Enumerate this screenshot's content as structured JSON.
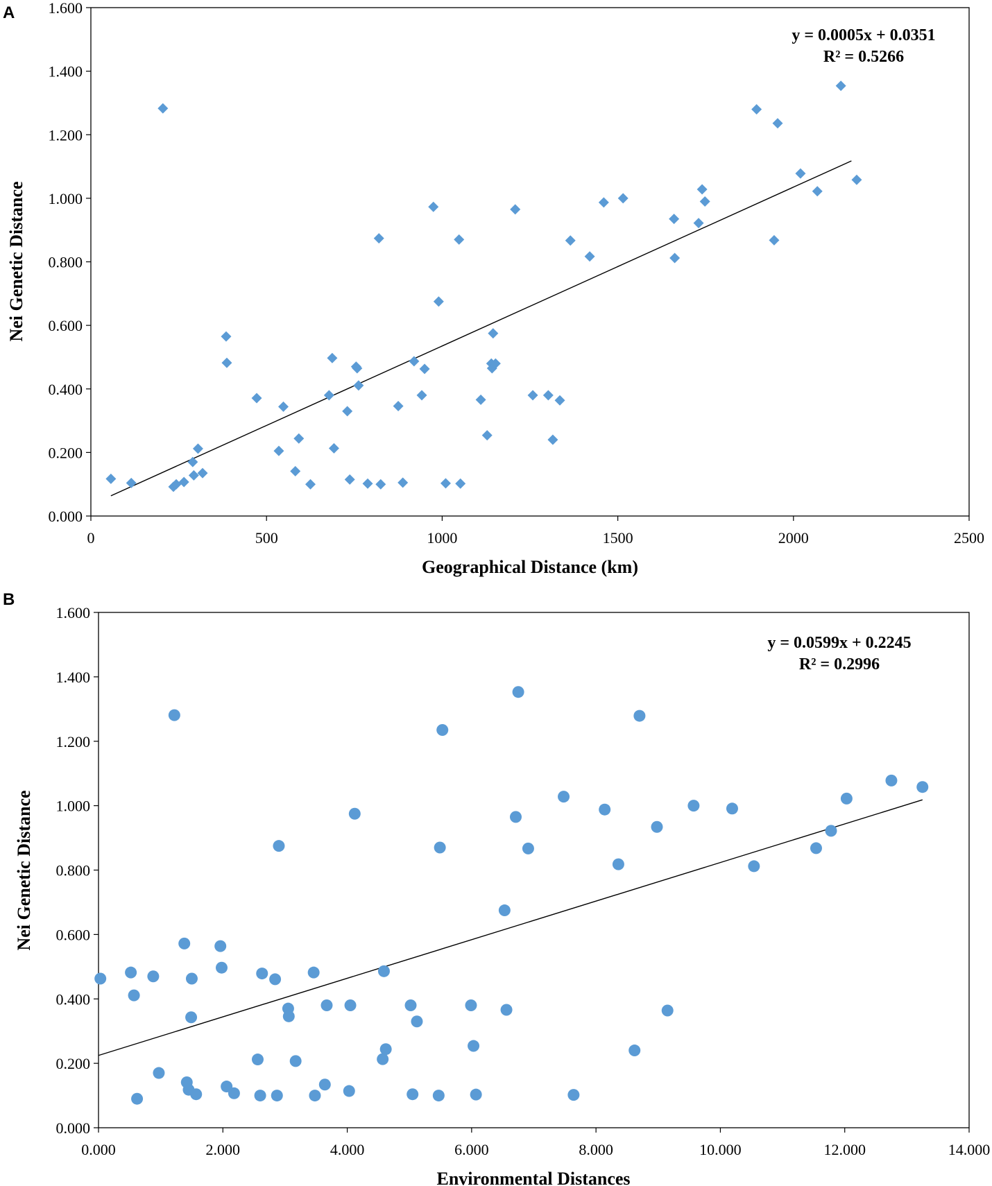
{
  "colors": {
    "marker": "#5B9BD5",
    "axis": "#000000",
    "trend": "#000000"
  },
  "chart_data": [
    {
      "panel": "A",
      "type": "scatter",
      "marker": "diamond",
      "xlabel": "Geographical Distance (km)",
      "ylabel": "Nei Genetic Distance",
      "xlim": [
        0,
        2500
      ],
      "ylim": [
        0,
        1.6
      ],
      "xticks": [
        0,
        500,
        1000,
        1500,
        2000,
        2500
      ],
      "xtick_labels": [
        "0",
        "500",
        "1000",
        "1500",
        "2000",
        "2500"
      ],
      "yticks": [
        0,
        0.2,
        0.4,
        0.6,
        0.8,
        1.0,
        1.2,
        1.4,
        1.6
      ],
      "ytick_labels": [
        "0.000",
        "0.200",
        "0.400",
        "0.600",
        "0.800",
        "1.000",
        "1.200",
        "1.400",
        "1.600"
      ],
      "equation": "y = 0.0005x + 0.0351",
      "r_squared": "R² = 0.5266",
      "trend": {
        "slope": 0.0005,
        "intercept": 0.0351,
        "x_range": [
          57,
          2165
        ]
      },
      "points": [
        [
          57,
          0.117
        ],
        [
          115,
          0.104
        ],
        [
          205,
          1.283
        ],
        [
          235,
          0.092
        ],
        [
          243,
          0.1
        ],
        [
          265,
          0.107
        ],
        [
          290,
          0.17
        ],
        [
          293,
          0.128
        ],
        [
          305,
          0.212
        ],
        [
          318,
          0.135
        ],
        [
          385,
          0.565
        ],
        [
          387,
          0.482
        ],
        [
          472,
          0.371
        ],
        [
          535,
          0.205
        ],
        [
          548,
          0.344
        ],
        [
          582,
          0.141
        ],
        [
          592,
          0.244
        ],
        [
          625,
          0.1
        ],
        [
          678,
          0.38
        ],
        [
          687,
          0.497
        ],
        [
          692,
          0.213
        ],
        [
          730,
          0.33
        ],
        [
          737,
          0.115
        ],
        [
          755,
          0.47
        ],
        [
          758,
          0.465
        ],
        [
          762,
          0.411
        ],
        [
          788,
          0.102
        ],
        [
          820,
          0.874
        ],
        [
          825,
          0.1
        ],
        [
          875,
          0.346
        ],
        [
          888,
          0.105
        ],
        [
          920,
          0.487
        ],
        [
          942,
          0.38
        ],
        [
          950,
          0.463
        ],
        [
          975,
          0.973
        ],
        [
          990,
          0.675
        ],
        [
          1010,
          0.103
        ],
        [
          1048,
          0.87
        ],
        [
          1052,
          0.102
        ],
        [
          1110,
          0.366
        ],
        [
          1128,
          0.254
        ],
        [
          1140,
          0.48
        ],
        [
          1142,
          0.465
        ],
        [
          1145,
          0.575
        ],
        [
          1152,
          0.48
        ],
        [
          1208,
          0.965
        ],
        [
          1258,
          0.38
        ],
        [
          1302,
          0.38
        ],
        [
          1315,
          0.24
        ],
        [
          1335,
          0.364
        ],
        [
          1365,
          0.867
        ],
        [
          1420,
          0.817
        ],
        [
          1460,
          0.987
        ],
        [
          1515,
          1.0
        ],
        [
          1660,
          0.935
        ],
        [
          1662,
          0.812
        ],
        [
          1730,
          0.922
        ],
        [
          1740,
          1.028
        ],
        [
          1748,
          0.99
        ],
        [
          1895,
          1.28
        ],
        [
          1945,
          0.868
        ],
        [
          1955,
          1.236
        ],
        [
          2020,
          1.078
        ],
        [
          2068,
          1.022
        ],
        [
          2135,
          1.354
        ],
        [
          2180,
          1.058
        ]
      ]
    },
    {
      "panel": "B",
      "type": "scatter",
      "marker": "circle",
      "xlabel": "Environmental Distances",
      "ylabel": "Nei Genetic Distance",
      "xlim": [
        0,
        14
      ],
      "ylim": [
        0,
        1.6
      ],
      "xticks": [
        0,
        2,
        4,
        6,
        8,
        10,
        12,
        14
      ],
      "xtick_labels": [
        "0.000",
        "2.000",
        "4.000",
        "6.000",
        "8.000",
        "10.000",
        "12.000",
        "14.000"
      ],
      "yticks": [
        0,
        0.2,
        0.4,
        0.6,
        0.8,
        1.0,
        1.2,
        1.4,
        1.6
      ],
      "ytick_labels": [
        "0.000",
        "0.200",
        "0.400",
        "0.600",
        "0.800",
        "1.000",
        "1.200",
        "1.400",
        "1.600"
      ],
      "equation": "y = 0.0599x + 0.2245",
      "r_squared": "R² = 0.2996",
      "trend": {
        "slope": 0.0599,
        "intercept": 0.2245,
        "x_range": [
          0,
          13.25
        ]
      },
      "points": [
        [
          0.03,
          0.463
        ],
        [
          0.52,
          0.482
        ],
        [
          0.57,
          0.411
        ],
        [
          0.62,
          0.09
        ],
        [
          0.88,
          0.47
        ],
        [
          0.97,
          0.17
        ],
        [
          1.22,
          1.281
        ],
        [
          1.38,
          0.572
        ],
        [
          1.42,
          0.141
        ],
        [
          1.45,
          0.118
        ],
        [
          1.49,
          0.343
        ],
        [
          1.5,
          0.463
        ],
        [
          1.57,
          0.104
        ],
        [
          1.96,
          0.564
        ],
        [
          1.98,
          0.497
        ],
        [
          2.06,
          0.128
        ],
        [
          2.18,
          0.107
        ],
        [
          2.56,
          0.212
        ],
        [
          2.6,
          0.1
        ],
        [
          2.63,
          0.479
        ],
        [
          2.84,
          0.461
        ],
        [
          2.87,
          0.1
        ],
        [
          2.9,
          0.875
        ],
        [
          3.05,
          0.37
        ],
        [
          3.06,
          0.346
        ],
        [
          3.17,
          0.207
        ],
        [
          3.46,
          0.482
        ],
        [
          3.48,
          0.1
        ],
        [
          3.64,
          0.134
        ],
        [
          3.67,
          0.38
        ],
        [
          4.03,
          0.114
        ],
        [
          4.05,
          0.38
        ],
        [
          4.12,
          0.975
        ],
        [
          4.57,
          0.213
        ],
        [
          4.59,
          0.486
        ],
        [
          4.62,
          0.244
        ],
        [
          5.02,
          0.38
        ],
        [
          5.05,
          0.104
        ],
        [
          5.12,
          0.33
        ],
        [
          5.47,
          0.1
        ],
        [
          5.49,
          0.87
        ],
        [
          5.53,
          1.235
        ],
        [
          5.99,
          0.38
        ],
        [
          6.03,
          0.254
        ],
        [
          6.07,
          0.103
        ],
        [
          6.53,
          0.675
        ],
        [
          6.56,
          0.366
        ],
        [
          6.71,
          0.965
        ],
        [
          6.75,
          1.353
        ],
        [
          6.91,
          0.867
        ],
        [
          7.48,
          1.028
        ],
        [
          7.64,
          0.102
        ],
        [
          8.14,
          0.988
        ],
        [
          8.36,
          0.818
        ],
        [
          8.62,
          0.24
        ],
        [
          8.7,
          1.279
        ],
        [
          8.98,
          0.934
        ],
        [
          9.15,
          0.364
        ],
        [
          9.57,
          1.0
        ],
        [
          10.19,
          0.991
        ],
        [
          10.54,
          0.812
        ],
        [
          11.54,
          0.868
        ],
        [
          11.78,
          0.922
        ],
        [
          12.03,
          1.022
        ],
        [
          12.75,
          1.078
        ],
        [
          13.25,
          1.058
        ]
      ]
    }
  ]
}
